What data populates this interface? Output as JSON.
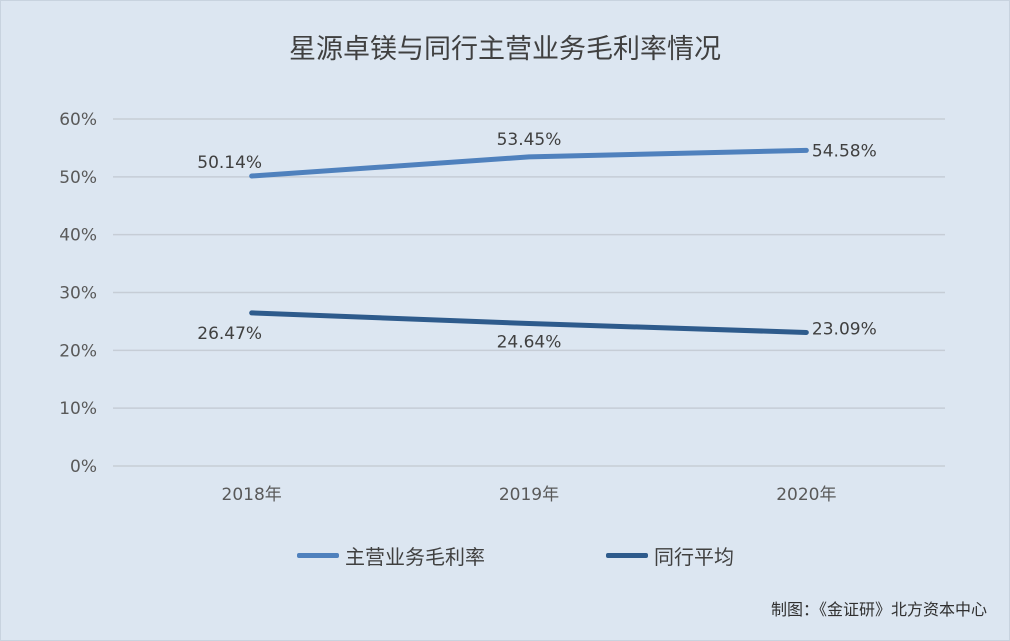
{
  "chart_data": {
    "type": "line",
    "title": "星源卓镁与同行主营业务毛利率情况",
    "categories": [
      "2018年",
      "2019年",
      "2020年"
    ],
    "series": [
      {
        "name": "主营业务毛利率",
        "values": [
          50.14,
          53.45,
          54.58
        ],
        "labels": [
          "50.14%",
          "53.45%",
          "54.58%"
        ],
        "color": "#4f81bd"
      },
      {
        "name": "同行平均",
        "values": [
          26.47,
          24.64,
          23.09
        ],
        "labels": [
          "26.47%",
          "24.64%",
          "23.09%"
        ],
        "color": "#2e5b8c"
      }
    ],
    "y_ticks": [
      "0%",
      "10%",
      "20%",
      "30%",
      "40%",
      "50%",
      "60%"
    ],
    "ylim": [
      0,
      60
    ],
    "grid": true,
    "legend_position": "bottom"
  },
  "source_note": "制图：《金证研》北方资本中心"
}
